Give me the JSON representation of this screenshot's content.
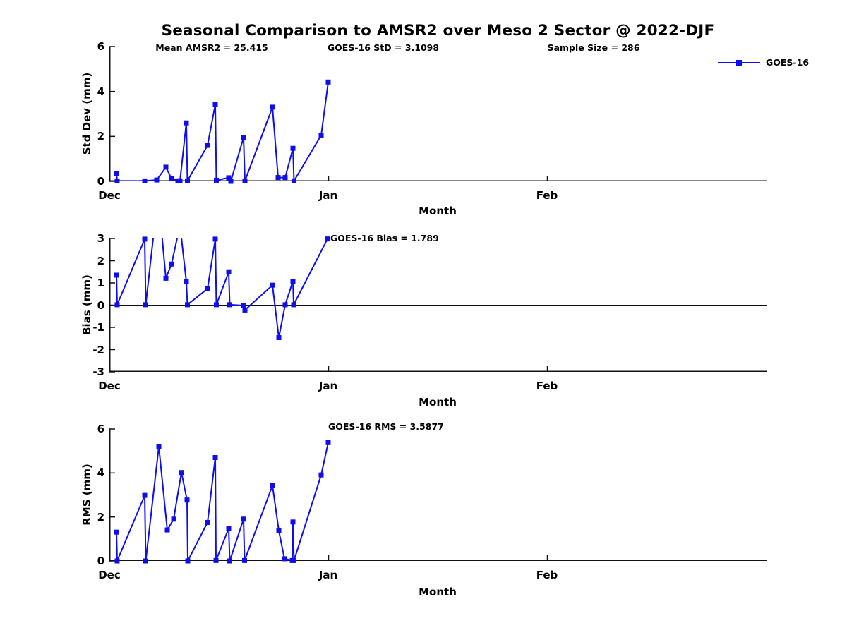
{
  "title": "Seasonal Comparison to AMSR2 over Meso 2 Sector @ 2022-DJF",
  "legend": {
    "label": "GOES-16",
    "color": "#0d0dee",
    "marker": "square"
  },
  "chart_data": [
    {
      "type": "line",
      "ylabel": "Std Dev (mm)",
      "xlabel": "Month",
      "ylim": [
        0,
        6
      ],
      "yticks": [
        0,
        2,
        4,
        6
      ],
      "xlim_days": [
        0,
        93.1
      ],
      "xticks": [
        {
          "day": 0,
          "label": "Dec"
        },
        {
          "day": 31,
          "label": "Jan"
        },
        {
          "day": 62,
          "label": "Feb"
        }
      ],
      "grid": false,
      "legend_position": "top-right-outside",
      "zero_line": false,
      "annotations": [
        {
          "text": "Mean AMSR2 = 25.415",
          "day": 14.5,
          "value": 5.93,
          "align": "center"
        },
        {
          "text": "GOES-16 StD = 3.1098",
          "day": 38.8,
          "value": 5.93,
          "align": "center"
        },
        {
          "text": "Sample Size = 286",
          "day": 68.6,
          "value": 5.93,
          "align": "center"
        }
      ],
      "series": [
        {
          "name": "GOES-16",
          "color": "#0d0dee",
          "marker": "square",
          "x": [
            1.0,
            1.1,
            5.0,
            6.7,
            8.0,
            8.8,
            9.7,
            10.0,
            10.9,
            11.05,
            13.9,
            15.0,
            15.15,
            16.9,
            17.2,
            19.0,
            19.2,
            23.1,
            23.9,
            24.9,
            26.0,
            26.15,
            30.0,
            31.0
          ],
          "y": [
            0.33,
            0.02,
            0.02,
            0.06,
            0.63,
            0.12,
            0.02,
            0.02,
            2.6,
            0.02,
            1.6,
            3.42,
            0.05,
            0.16,
            0.0,
            1.95,
            0.02,
            3.3,
            0.17,
            0.17,
            1.47,
            0.02,
            2.05,
            4.42
          ]
        }
      ]
    },
    {
      "type": "line",
      "ylabel": "Bias (mm)",
      "xlabel": "Month",
      "ylim": [
        -3,
        3
      ],
      "yticks": [
        -3,
        -2,
        -1,
        0,
        1,
        2,
        3
      ],
      "xlim_days": [
        0,
        93.1
      ],
      "xticks": [
        {
          "day": 0,
          "label": "Dec"
        },
        {
          "day": 31,
          "label": "Jan"
        },
        {
          "day": 62,
          "label": "Feb"
        }
      ],
      "grid": false,
      "zero_line": true,
      "annotations": [
        {
          "text": "GOES-16 Bias = 1.789",
          "day": 31.3,
          "value": 3.0,
          "align": "left"
        }
      ],
      "series": [
        {
          "name": "GOES-16",
          "color": "#0d0dee",
          "marker": "square",
          "x": [
            1.0,
            1.1,
            5.0,
            5.15,
            6.9,
            8.0,
            8.8,
            10.0,
            10.9,
            11.05,
            13.9,
            15.0,
            15.15,
            16.9,
            17.05,
            19.0,
            19.2,
            23.1,
            24.0,
            24.9,
            26.0,
            26.1,
            30.9
          ],
          "y": [
            1.35,
            0.02,
            2.97,
            0.02,
            5.0,
            1.21,
            1.85,
            3.6,
            1.06,
            0.02,
            0.74,
            2.97,
            0.02,
            1.5,
            0.02,
            -0.02,
            -0.22,
            0.9,
            -1.46,
            0.02,
            1.08,
            0.02,
            2.98
          ]
        }
      ]
    },
    {
      "type": "line",
      "ylabel": "RMS (mm)",
      "xlabel": "Month",
      "ylim": [
        0,
        6
      ],
      "yticks": [
        0,
        2,
        4,
        6
      ],
      "xlim_days": [
        0,
        93.1
      ],
      "xticks": [
        {
          "day": 0,
          "label": "Dec"
        },
        {
          "day": 31,
          "label": "Jan"
        },
        {
          "day": 62,
          "label": "Feb"
        }
      ],
      "grid": false,
      "zero_line": false,
      "annotations": [
        {
          "text": "GOES-16 RMS = 3.5877",
          "day": 31.0,
          "value": 6.1,
          "align": "left"
        }
      ],
      "series": [
        {
          "name": "GOES-16",
          "color": "#0d0dee",
          "marker": "square",
          "x": [
            1.0,
            1.1,
            5.0,
            5.15,
            7.0,
            8.2,
            9.1,
            10.2,
            11.0,
            11.1,
            13.9,
            15.0,
            15.1,
            16.9,
            17.05,
            19.0,
            19.15,
            23.1,
            24.0,
            24.8,
            25.9,
            26.0,
            26.15,
            30.0,
            31.0
          ],
          "y": [
            1.31,
            0.0,
            2.98,
            0.0,
            5.2,
            1.41,
            1.9,
            4.02,
            2.77,
            0.0,
            1.75,
            4.7,
            0.02,
            1.48,
            0.0,
            1.9,
            0.02,
            3.43,
            1.37,
            0.1,
            0.02,
            1.77,
            0.02,
            3.91,
            5.38
          ]
        }
      ]
    }
  ]
}
